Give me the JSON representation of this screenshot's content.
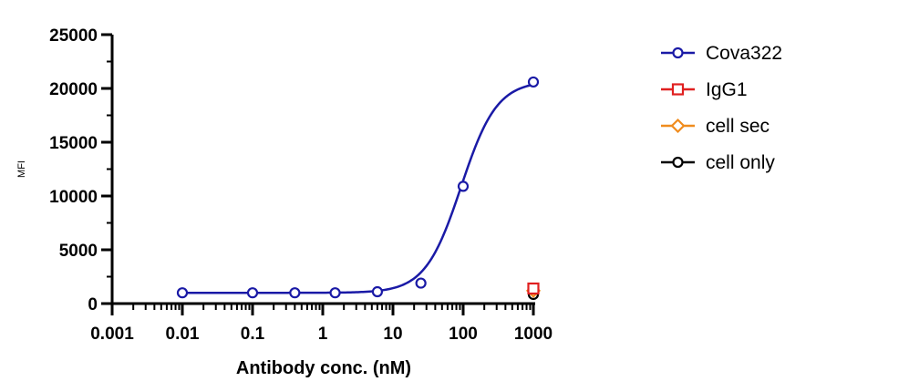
{
  "chart_data": {
    "type": "scatter",
    "title": "",
    "xlabel": "Antibody conc. (nM)",
    "ylabel": "MFI",
    "x_scale": "log",
    "xlim": [
      0.001,
      1000
    ],
    "ylim": [
      0,
      25000
    ],
    "x_ticks": [
      "0.001",
      "0.01",
      "0.1",
      "1",
      "10",
      "100",
      "1000"
    ],
    "y_ticks": [
      "0",
      "5000",
      "10000",
      "15000",
      "20000",
      "25000"
    ],
    "legend_position": "right",
    "grid": false,
    "series": [
      {
        "name": "Cova322",
        "color": "#1a1aa6",
        "marker": "circle",
        "fit": "sigmoidal",
        "points": [
          {
            "x": 0.01,
            "y": 1000
          },
          {
            "x": 0.1,
            "y": 1000
          },
          {
            "x": 0.4,
            "y": 1000
          },
          {
            "x": 1.5,
            "y": 1000
          },
          {
            "x": 6,
            "y": 1100
          },
          {
            "x": 25,
            "y": 1900
          },
          {
            "x": 100,
            "y": 10900
          },
          {
            "x": 1000,
            "y": 20600
          }
        ]
      },
      {
        "name": "IgG1",
        "color": "#e02020",
        "marker": "square",
        "points": [
          {
            "x": 1000,
            "y": 1400
          }
        ]
      },
      {
        "name": "cell sec",
        "color": "#f08c1e",
        "marker": "diamond",
        "points": [
          {
            "x": 1000,
            "y": 1200
          }
        ]
      },
      {
        "name": "cell only",
        "color": "#000000",
        "marker": "circle",
        "points": [
          {
            "x": 1000,
            "y": 850
          }
        ]
      }
    ],
    "fit_params": {
      "bottom": 1000,
      "top": 20700,
      "logEC50": 1.97,
      "hill": 1.7
    }
  }
}
